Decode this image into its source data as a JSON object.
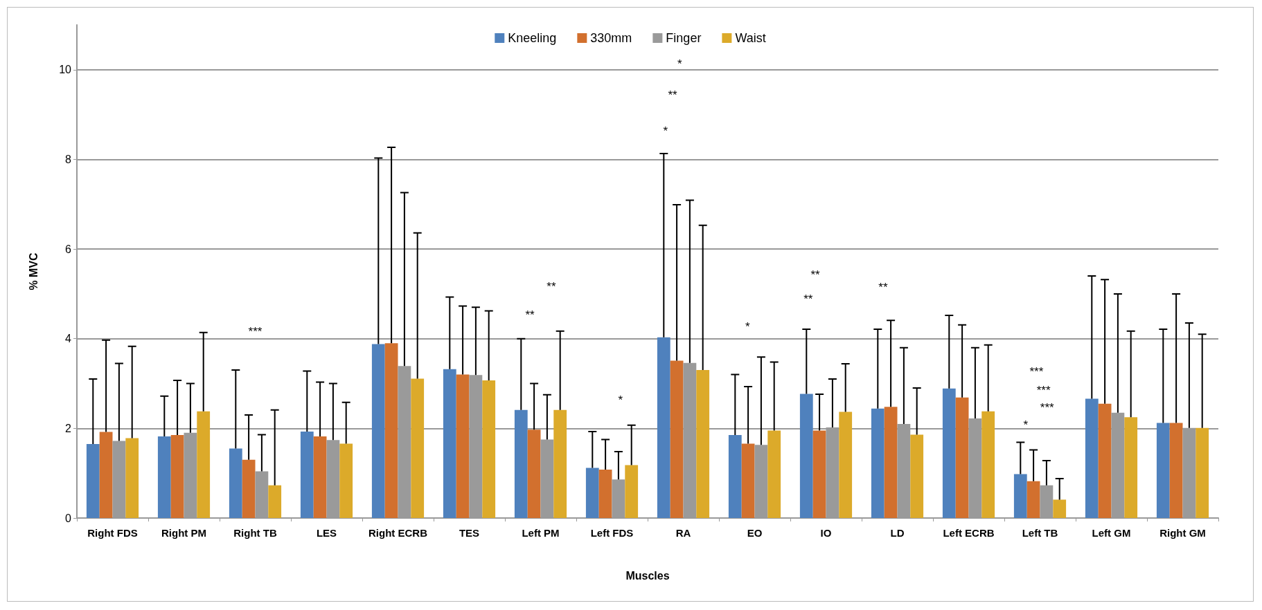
{
  "chart_data": {
    "type": "bar",
    "xlabel": "Muscles",
    "ylabel": "% MVC",
    "categories": [
      "Right FDS",
      "Right PM",
      "Right TB",
      "LES",
      "Right ECRB",
      "TES",
      "Left PM",
      "Left FDS",
      "RA",
      "EO",
      "IO",
      "LD",
      "Left ECRB",
      "Left TB",
      "Left GM",
      "Right GM"
    ],
    "series": [
      {
        "name": "Kneeling",
        "color": "#4f81bd",
        "values": [
          1.65,
          1.82,
          1.55,
          1.93,
          3.88,
          3.32,
          2.41,
          1.12,
          4.03,
          1.85,
          2.77,
          2.44,
          2.89,
          0.98,
          2.66,
          2.12
        ],
        "errors": [
          [
            1.65,
            3.1
          ],
          [
            1.82,
            2.72
          ],
          [
            1.55,
            3.3
          ],
          [
            1.93,
            3.28
          ],
          [
            3.88,
            8.03
          ],
          [
            3.32,
            4.93
          ],
          [
            2.41,
            4.0
          ],
          [
            1.12,
            1.93
          ],
          [
            4.03,
            8.13
          ],
          [
            1.85,
            3.2
          ],
          [
            2.77,
            4.21
          ],
          [
            2.44,
            4.21
          ],
          [
            2.89,
            4.52
          ],
          [
            0.98,
            1.69
          ],
          [
            2.66,
            5.4
          ],
          [
            2.12,
            4.21
          ]
        ]
      },
      {
        "name": "330mm",
        "color": "#d2702e",
        "values": [
          1.92,
          1.85,
          1.3,
          1.82,
          3.9,
          3.2,
          1.97,
          1.08,
          3.51,
          1.66,
          1.95,
          2.48,
          2.69,
          0.82,
          2.55,
          2.12
        ],
        "errors": [
          [
            1.92,
            3.97
          ],
          [
            1.85,
            3.07
          ],
          [
            1.3,
            2.3
          ],
          [
            1.82,
            3.03
          ],
          [
            3.9,
            8.27
          ],
          [
            3.2,
            4.73
          ],
          [
            1.97,
            3.0
          ],
          [
            1.08,
            1.75
          ],
          [
            3.51,
            6.99
          ],
          [
            1.66,
            2.93
          ],
          [
            1.95,
            2.76
          ],
          [
            2.48,
            4.41
          ],
          [
            2.69,
            4.31
          ],
          [
            0.82,
            1.52
          ],
          [
            2.55,
            5.32
          ],
          [
            2.12,
            5.0
          ]
        ]
      },
      {
        "name": "Finger",
        "color": "#9a9a9a",
        "values": [
          1.72,
          1.9,
          1.04,
          1.74,
          3.39,
          3.19,
          1.75,
          0.86,
          3.46,
          1.63,
          2.02,
          2.1,
          2.22,
          0.73,
          2.35,
          2.01
        ],
        "errors": [
          [
            1.72,
            3.45
          ],
          [
            1.9,
            3.0
          ],
          [
            1.04,
            1.86
          ],
          [
            1.74,
            3.0
          ],
          [
            3.39,
            7.26
          ],
          [
            3.19,
            4.7
          ],
          [
            1.75,
            2.75
          ],
          [
            0.86,
            1.48
          ],
          [
            3.46,
            7.09
          ],
          [
            1.63,
            3.59
          ],
          [
            2.02,
            3.1
          ],
          [
            2.1,
            3.8
          ],
          [
            2.22,
            3.8
          ],
          [
            0.73,
            1.28
          ],
          [
            2.35,
            5.0
          ],
          [
            2.01,
            4.35
          ]
        ]
      },
      {
        "name": "Waist",
        "color": "#dcaa2a",
        "values": [
          1.78,
          2.38,
          0.73,
          1.66,
          3.11,
          3.07,
          2.41,
          1.18,
          3.3,
          1.95,
          2.37,
          1.86,
          2.38,
          0.41,
          2.25,
          2.01
        ],
        "errors": [
          [
            1.78,
            3.83
          ],
          [
            2.38,
            4.14
          ],
          [
            0.73,
            2.41
          ],
          [
            1.66,
            2.58
          ],
          [
            3.11,
            6.36
          ],
          [
            3.07,
            4.62
          ],
          [
            2.41,
            4.17
          ],
          [
            1.18,
            2.07
          ],
          [
            3.3,
            6.53
          ],
          [
            1.95,
            3.48
          ],
          [
            2.37,
            3.44
          ],
          [
            1.86,
            2.9
          ],
          [
            2.38,
            3.86
          ],
          [
            0.41,
            0.88
          ],
          [
            2.25,
            4.17
          ],
          [
            2.01,
            4.1
          ]
        ]
      }
    ],
    "ylim": [
      0,
      11
    ],
    "yticks": [
      0,
      2,
      4,
      6,
      8,
      10
    ],
    "grid": "y",
    "legend": "top",
    "annotations": [
      "***",
      "**",
      "**",
      "*",
      "*",
      "**",
      "*",
      "*",
      "**",
      "**",
      "**",
      "*",
      "***",
      "***",
      "***"
    ]
  }
}
